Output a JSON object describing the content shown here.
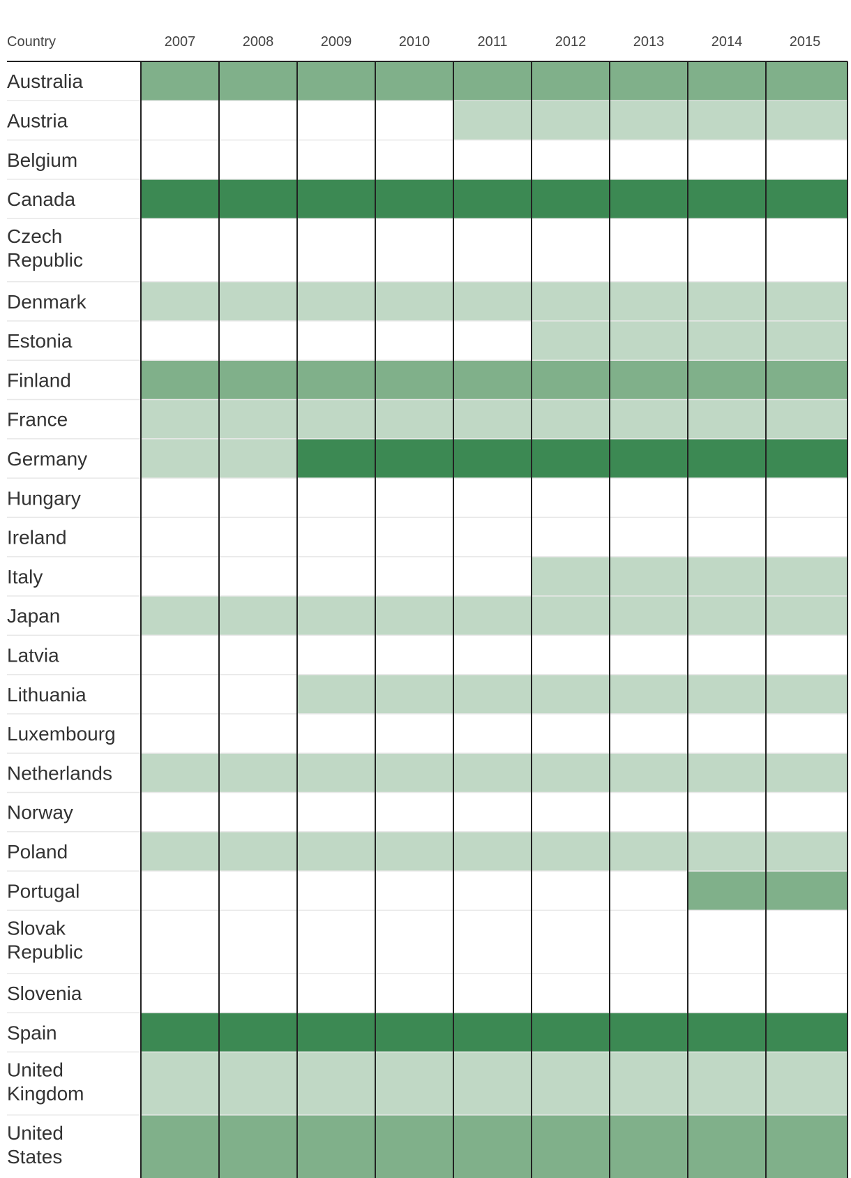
{
  "chart_data": {
    "type": "heatmap",
    "row_header": "Country",
    "years": [
      "2007",
      "2008",
      "2009",
      "2010",
      "2011",
      "2012",
      "2013",
      "2014",
      "2015"
    ],
    "legend": [],
    "level_colors": {
      "0": "#ffffff",
      "1": "#c0d8c5",
      "2": "#80b08a",
      "3": "#3c8953"
    },
    "rows": [
      {
        "country": "Australia",
        "levels": [
          2,
          2,
          2,
          2,
          2,
          2,
          2,
          2,
          2
        ]
      },
      {
        "country": "Austria",
        "levels": [
          0,
          0,
          0,
          0,
          1,
          1,
          1,
          1,
          1
        ]
      },
      {
        "country": "Belgium",
        "levels": [
          0,
          0,
          0,
          0,
          0,
          0,
          0,
          0,
          0
        ]
      },
      {
        "country": "Canada",
        "levels": [
          3,
          3,
          3,
          3,
          3,
          3,
          3,
          3,
          3
        ]
      },
      {
        "country": "Czech Republic",
        "levels": [
          0,
          0,
          0,
          0,
          0,
          0,
          0,
          0,
          0
        ]
      },
      {
        "country": "Denmark",
        "levels": [
          1,
          1,
          1,
          1,
          1,
          1,
          1,
          1,
          1
        ]
      },
      {
        "country": "Estonia",
        "levels": [
          0,
          0,
          0,
          0,
          0,
          1,
          1,
          1,
          1
        ]
      },
      {
        "country": "Finland",
        "levels": [
          2,
          2,
          2,
          2,
          2,
          2,
          2,
          2,
          2
        ]
      },
      {
        "country": "France",
        "levels": [
          1,
          1,
          1,
          1,
          1,
          1,
          1,
          1,
          1
        ]
      },
      {
        "country": "Germany",
        "levels": [
          1,
          1,
          3,
          3,
          3,
          3,
          3,
          3,
          3
        ]
      },
      {
        "country": "Hungary",
        "levels": [
          0,
          0,
          0,
          0,
          0,
          0,
          0,
          0,
          0
        ]
      },
      {
        "country": "Ireland",
        "levels": [
          0,
          0,
          0,
          0,
          0,
          0,
          0,
          0,
          0
        ]
      },
      {
        "country": "Italy",
        "levels": [
          0,
          0,
          0,
          0,
          0,
          1,
          1,
          1,
          1
        ]
      },
      {
        "country": "Japan",
        "levels": [
          1,
          1,
          1,
          1,
          1,
          1,
          1,
          1,
          1
        ]
      },
      {
        "country": "Latvia",
        "levels": [
          0,
          0,
          0,
          0,
          0,
          0,
          0,
          0,
          0
        ]
      },
      {
        "country": "Lithuania",
        "levels": [
          0,
          0,
          1,
          1,
          1,
          1,
          1,
          1,
          1
        ]
      },
      {
        "country": "Luxembourg",
        "levels": [
          0,
          0,
          0,
          0,
          0,
          0,
          0,
          0,
          0
        ]
      },
      {
        "country": "Netherlands",
        "levels": [
          1,
          1,
          1,
          1,
          1,
          1,
          1,
          1,
          1
        ]
      },
      {
        "country": "Norway",
        "levels": [
          0,
          0,
          0,
          0,
          0,
          0,
          0,
          0,
          0
        ]
      },
      {
        "country": "Poland",
        "levels": [
          1,
          1,
          1,
          1,
          1,
          1,
          1,
          1,
          1
        ]
      },
      {
        "country": "Portugal",
        "levels": [
          0,
          0,
          0,
          0,
          0,
          0,
          0,
          2,
          2
        ]
      },
      {
        "country": "Slovak Republic",
        "levels": [
          0,
          0,
          0,
          0,
          0,
          0,
          0,
          0,
          0
        ]
      },
      {
        "country": "Slovenia",
        "levels": [
          0,
          0,
          0,
          0,
          0,
          0,
          0,
          0,
          0
        ]
      },
      {
        "country": "Spain",
        "levels": [
          3,
          3,
          3,
          3,
          3,
          3,
          3,
          3,
          3
        ]
      },
      {
        "country": "United Kingdom",
        "levels": [
          1,
          1,
          1,
          1,
          1,
          1,
          1,
          1,
          1
        ]
      },
      {
        "country": "United States",
        "levels": [
          2,
          2,
          2,
          2,
          2,
          2,
          2,
          2,
          2
        ]
      }
    ]
  }
}
